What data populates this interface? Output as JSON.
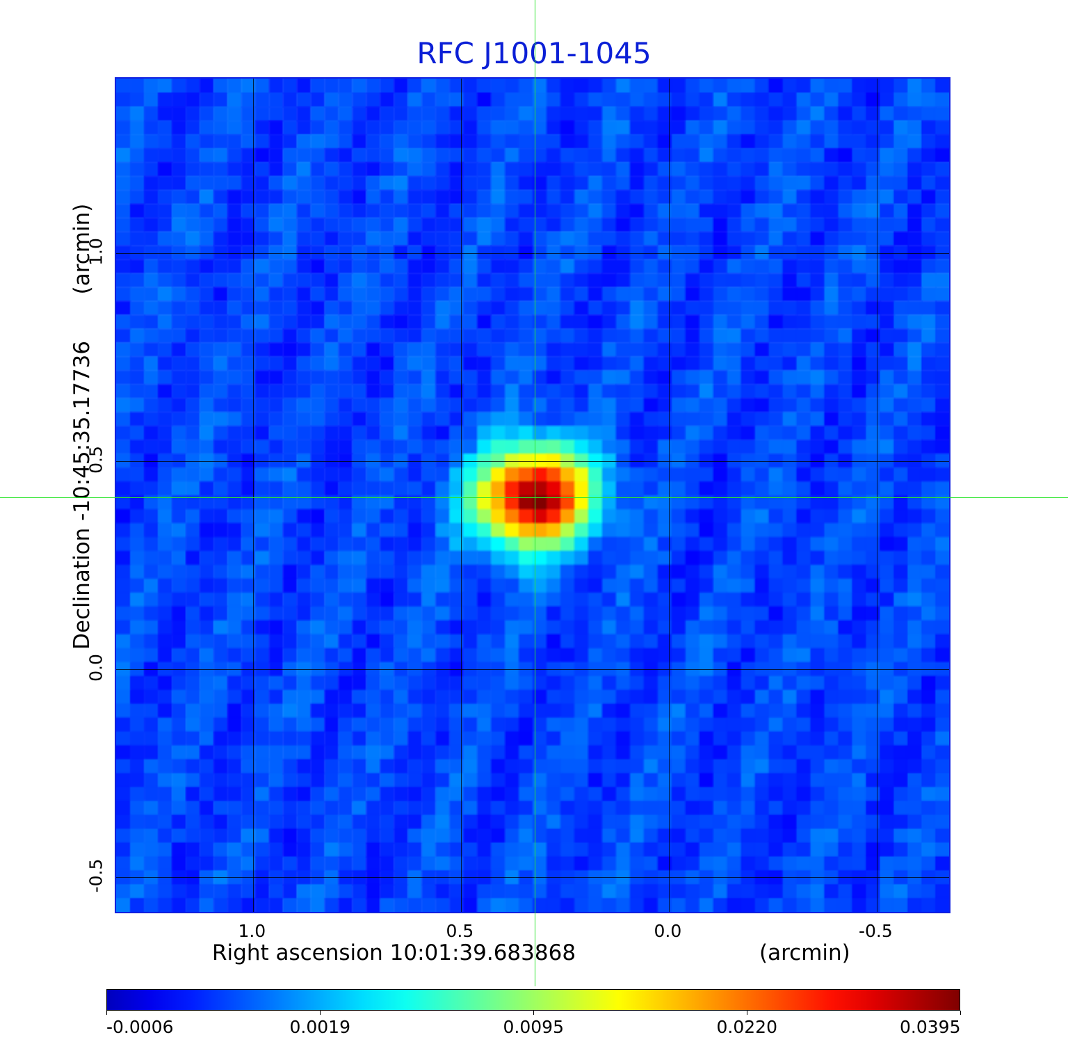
{
  "title": "RFC J1001-1045",
  "chart_data": {
    "type": "heatmap",
    "title": "RFC J1001-1045",
    "xlabel": "Right ascension  10:01:39.683868",
    "xunit": "(arcmin)",
    "ylabel": "Declination  -10:45:35.17736",
    "yunit": "(arcmin)",
    "xlim": [
      1.33,
      -0.68
    ],
    "ylim": [
      -0.59,
      1.42
    ],
    "x_ticks": [
      "1.0",
      "0.5",
      "0.0",
      "-0.5"
    ],
    "x_tick_values": [
      1.0,
      0.5,
      0.0,
      -0.5
    ],
    "y_ticks": [
      "1.0",
      "0.5",
      "0.0",
      "-0.5"
    ],
    "y_tick_values": [
      1.0,
      0.5,
      0.0,
      -0.5
    ],
    "grid": true,
    "crosshair": {
      "x": 0.32,
      "y": 0.41
    },
    "source_peak": {
      "x": 0.32,
      "y": 0.41,
      "value": 0.0395
    },
    "colormap": "jet",
    "colorbar_ticks": [
      "-0.0006",
      "0.0019",
      "0.0095",
      "0.0220",
      "0.0395"
    ],
    "colorbar_range": [
      -0.0006,
      0.0395
    ],
    "colors": {
      "title": "#0b1fd6",
      "crosshair": "#2ee62e",
      "frame": "#1020e0"
    }
  }
}
